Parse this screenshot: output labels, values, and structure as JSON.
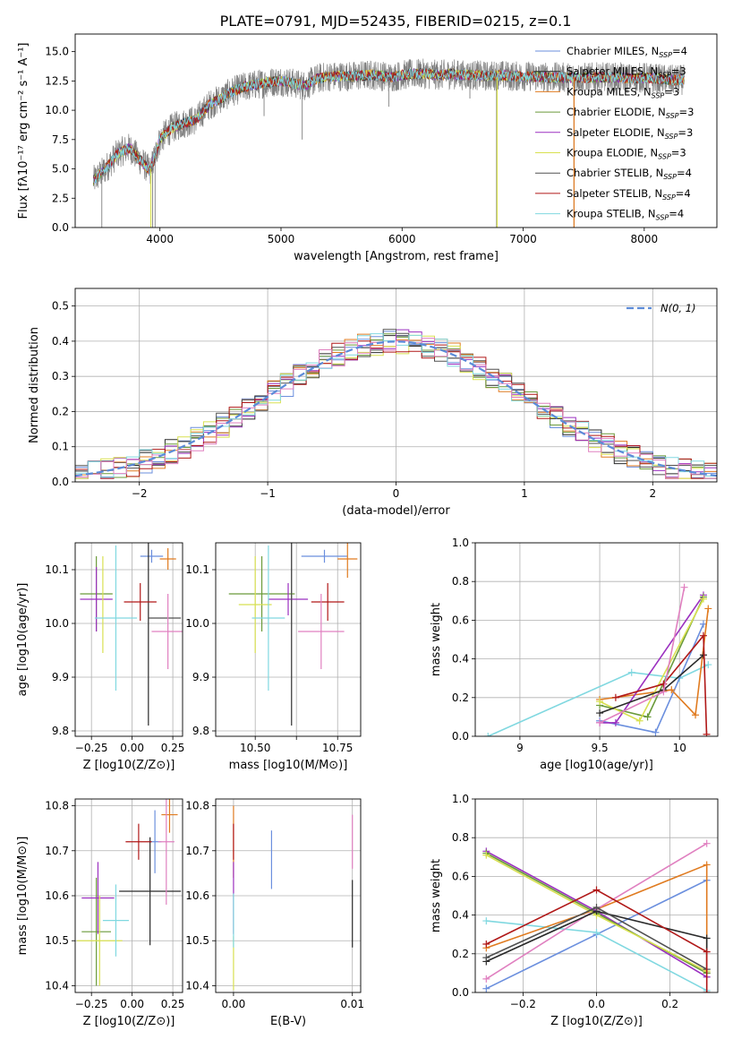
{
  "figure": {
    "title": "PLATE=0791, MJD=52435, FIBERID=0215, z=0.1"
  },
  "colors": {
    "Chabrier MILES": "#6b8fde",
    "Salpeter MILES": "#2a2a2a",
    "Kroupa MILES": "#e07b20",
    "Chabrier ELODIE": "#6a9a3a",
    "Salpeter ELODIE": "#9b30c0",
    "Kroupa ELODIE": "#d8e050",
    "Chabrier STELIB": "#505050",
    "Salpeter STELIB": "#b01818",
    "Kroupa STELIB": "#80d8e0",
    "extra": "#e080c0",
    "grid": "#b0b0b0",
    "normal_fit": "#5b8bd8"
  },
  "chart_data": [
    {
      "id": "spectrum",
      "type": "line",
      "title": "PLATE=0791, MJD=52435, FIBERID=0215, z=0.1",
      "xlabel": "wavelength [Angstrom, rest frame]",
      "ylabel": "Flux [fλ10⁻¹⁷ erg cm⁻² s⁻¹ A⁻¹]",
      "xlim": [
        3300,
        8600
      ],
      "ylim": [
        0,
        16.5
      ],
      "xticks": [
        4000,
        5000,
        6000,
        7000,
        8000
      ],
      "yticks": [
        0.0,
        2.5,
        5.0,
        7.5,
        10.0,
        12.5,
        15.0
      ],
      "grid": false,
      "legend_position": "top-right",
      "continuum": [
        [
          3450,
          4.0
        ],
        [
          3550,
          5.0
        ],
        [
          3650,
          6.3
        ],
        [
          3750,
          6.8
        ],
        [
          3850,
          5.6
        ],
        [
          3920,
          4.8
        ],
        [
          4000,
          7.5
        ],
        [
          4100,
          8.5
        ],
        [
          4200,
          8.9
        ],
        [
          4300,
          9.2
        ],
        [
          4400,
          10.4
        ],
        [
          4500,
          11.0
        ],
        [
          4600,
          11.6
        ],
        [
          4700,
          12.0
        ],
        [
          4800,
          12.2
        ],
        [
          4900,
          12.4
        ],
        [
          5000,
          12.5
        ],
        [
          5100,
          12.3
        ],
        [
          5200,
          12.1
        ],
        [
          5300,
          12.7
        ],
        [
          5400,
          12.9
        ],
        [
          5500,
          12.9
        ],
        [
          5600,
          12.9
        ],
        [
          5700,
          13.0
        ],
        [
          5800,
          13.0
        ],
        [
          5900,
          12.8
        ],
        [
          6000,
          13.0
        ],
        [
          6100,
          13.1
        ],
        [
          6200,
          13.1
        ],
        [
          6300,
          13.0
        ],
        [
          6400,
          13.1
        ],
        [
          6500,
          13.0
        ],
        [
          6600,
          13.0
        ],
        [
          6700,
          12.9
        ],
        [
          6800,
          13.0
        ],
        [
          6900,
          12.9
        ],
        [
          7000,
          12.9
        ],
        [
          7100,
          12.9
        ],
        [
          7200,
          12.8
        ],
        [
          7300,
          12.8
        ],
        [
          7400,
          12.8
        ],
        [
          7500,
          12.8
        ],
        [
          7600,
          12.8
        ],
        [
          7700,
          12.8
        ],
        [
          7800,
          12.8
        ],
        [
          7900,
          12.7
        ],
        [
          8000,
          12.8
        ],
        [
          8100,
          12.7
        ],
        [
          8200,
          12.6
        ],
        [
          8300,
          12.6
        ]
      ],
      "data_range": [
        3450,
        8330
      ],
      "dips": [
        [
          3520,
          0
        ],
        [
          3940,
          0
        ],
        [
          3960,
          0
        ],
        [
          4860,
          9.5
        ],
        [
          5175,
          7.5
        ],
        [
          5890,
          10.3
        ],
        [
          6560,
          11.0
        ],
        [
          6780,
          0
        ],
        [
          7420,
          0
        ]
      ],
      "series": [
        {
          "name": "Chabrier MILES",
          "nssp": "4"
        },
        {
          "name": "Salpeter MILES",
          "nssp": "3"
        },
        {
          "name": "Kroupa MILES",
          "nssp": "3"
        },
        {
          "name": "Chabrier ELODIE",
          "nssp": "3"
        },
        {
          "name": "Salpeter ELODIE",
          "nssp": "3"
        },
        {
          "name": "Kroupa ELODIE",
          "nssp": "3"
        },
        {
          "name": "Chabrier STELIB",
          "nssp": "4"
        },
        {
          "name": "Salpeter STELIB",
          "nssp": "4"
        },
        {
          "name": "Kroupa STELIB",
          "nssp": "4"
        }
      ]
    },
    {
      "id": "residuals",
      "type": "histogram",
      "xlabel": "(data-model)/error",
      "ylabel": "Normed distribution",
      "xlim": [
        -2.5,
        2.5
      ],
      "ylim": [
        0,
        0.55
      ],
      "xticks": [
        -2,
        -1,
        0,
        1,
        2
      ],
      "yticks": [
        0.0,
        0.1,
        0.2,
        0.3,
        0.4,
        0.5
      ],
      "grid": true,
      "legend_position": "top-right",
      "fit_label": "N(0, 1)",
      "bin_width": 0.1,
      "bin_start": -2.5,
      "bins": 50
    },
    {
      "id": "age_vs_Z",
      "type": "errorbar",
      "xlabel": "Z [log10(Z/Z⊙)]",
      "ylabel": "age [log10(age/yr)]",
      "xlim": [
        -0.35,
        0.31
      ],
      "ylim": [
        9.79,
        10.15
      ],
      "xticks": [
        -0.25,
        0.0,
        0.25
      ],
      "xticklabels": [
        "−0.25",
        "0.00",
        "0.25"
      ],
      "yticks": [
        9.8,
        9.9,
        10.0,
        10.1
      ],
      "grid": true,
      "points": [
        {
          "c": "Chabrier MILES",
          "x": 0.12,
          "y": 10.125,
          "xe": 0.07,
          "ye": 0.012
        },
        {
          "c": "Salpeter MILES",
          "x": 0.1,
          "y": 10.01,
          "xe": 0.0,
          "ye": 0.2
        },
        {
          "c": "Kroupa MILES",
          "x": 0.22,
          "y": 10.12,
          "xe": 0.05,
          "ye": 0.02
        },
        {
          "c": "Chabrier ELODIE",
          "x": -0.22,
          "y": 10.055,
          "xe": 0.1,
          "ye": 0.07
        },
        {
          "c": "Salpeter ELODIE",
          "x": -0.22,
          "y": 10.045,
          "xe": 0.1,
          "ye": 0.06
        },
        {
          "c": "Kroupa ELODIE",
          "x": -0.18,
          "y": 10.035,
          "xe": 0.0,
          "ye": 0.09
        },
        {
          "c": "Chabrier STELIB",
          "x": 0.2,
          "y": 10.01,
          "xe": 0.1,
          "ye": 0.0
        },
        {
          "c": "Salpeter STELIB",
          "x": 0.05,
          "y": 10.04,
          "xe": 0.1,
          "ye": 0.035
        },
        {
          "c": "Kroupa STELIB",
          "x": -0.1,
          "y": 10.01,
          "xe": 0.13,
          "ye": 0.135
        },
        {
          "c": "extra",
          "x": 0.22,
          "y": 9.985,
          "xe": 0.1,
          "ye": 0.07
        }
      ]
    },
    {
      "id": "age_vs_mass",
      "type": "errorbar",
      "xlabel": "mass [log10(M/M⊙)]",
      "ylabel": "",
      "xlim": [
        10.38,
        10.82
      ],
      "ylim": [
        9.79,
        10.15
      ],
      "xticks": [
        10.5,
        10.625,
        10.75
      ],
      "xticklabels": [
        "10.50",
        "",
        "10.75"
      ],
      "yticks": [
        9.8,
        9.9,
        10.0,
        10.1
      ],
      "grid": true,
      "points": [
        {
          "c": "Chabrier MILES",
          "x": 10.71,
          "y": 10.125,
          "xe": 0.07,
          "ye": 0.012
        },
        {
          "c": "Salpeter MILES",
          "x": 10.61,
          "y": 10.01,
          "xe": 0.0,
          "ye": 0.2
        },
        {
          "c": "Kroupa MILES",
          "x": 10.78,
          "y": 10.12,
          "xe": 0.03,
          "ye": 0.035
        },
        {
          "c": "Chabrier ELODIE",
          "x": 10.52,
          "y": 10.055,
          "xe": 0.1,
          "ye": 0.07
        },
        {
          "c": "Salpeter ELODIE",
          "x": 10.6,
          "y": 10.045,
          "xe": 0.06,
          "ye": 0.03
        },
        {
          "c": "Kroupa ELODIE",
          "x": 10.5,
          "y": 10.035,
          "xe": 0.05,
          "ye": 0.09
        },
        {
          "c": "Chabrier STELIB",
          "x": 10.61,
          "y": 10.01,
          "xe": 0.0,
          "ye": 0.2
        },
        {
          "c": "Salpeter STELIB",
          "x": 10.72,
          "y": 10.04,
          "xe": 0.05,
          "ye": 0.035
        },
        {
          "c": "Kroupa STELIB",
          "x": 10.54,
          "y": 10.01,
          "xe": 0.05,
          "ye": 0.135
        },
        {
          "c": "extra",
          "x": 10.7,
          "y": 9.985,
          "xe": 0.07,
          "ye": 0.07
        }
      ]
    },
    {
      "id": "weight_vs_age",
      "type": "line",
      "xlabel": "age [log10(age/yr)]",
      "ylabel": "mass weight",
      "xlim": [
        8.72,
        10.24
      ],
      "ylim": [
        0,
        1.0
      ],
      "xticks": [
        9.0,
        9.5,
        10.0
      ],
      "yticks": [
        0.0,
        0.2,
        0.4,
        0.6,
        0.8,
        1.0
      ],
      "grid": true,
      "lines": [
        {
          "c": "Kroupa STELIB",
          "pts": [
            [
              8.8,
              0.0
            ],
            [
              9.7,
              0.33
            ],
            [
              10.0,
              0.3
            ],
            [
              10.18,
              0.37
            ]
          ]
        },
        {
          "c": "Chabrier MILES",
          "pts": [
            [
              9.5,
              0.08
            ],
            [
              9.85,
              0.02
            ],
            [
              10.15,
              0.58
            ]
          ]
        },
        {
          "c": "Kroupa MILES",
          "pts": [
            [
              9.5,
              0.19
            ],
            [
              9.95,
              0.24
            ],
            [
              10.1,
              0.11
            ],
            [
              10.18,
              0.66
            ]
          ]
        },
        {
          "c": "Salpeter ELODIE",
          "pts": [
            [
              9.5,
              0.07
            ],
            [
              9.6,
              0.07
            ],
            [
              10.15,
              0.73
            ]
          ]
        },
        {
          "c": "Chabrier ELODIE",
          "pts": [
            [
              9.5,
              0.16
            ],
            [
              9.8,
              0.1
            ],
            [
              10.15,
              0.72
            ]
          ]
        },
        {
          "c": "Kroupa ELODIE",
          "pts": [
            [
              9.5,
              0.18
            ],
            [
              9.75,
              0.08
            ],
            [
              10.15,
              0.71
            ]
          ]
        },
        {
          "c": "Salpeter MILES",
          "pts": [
            [
              9.5,
              0.12
            ],
            [
              9.9,
              0.24
            ],
            [
              10.15,
              0.42
            ]
          ]
        },
        {
          "c": "Salpeter STELIB",
          "pts": [
            [
              9.6,
              0.2
            ],
            [
              9.9,
              0.27
            ],
            [
              10.15,
              0.52
            ],
            [
              10.17,
              0.01
            ]
          ]
        },
        {
          "c": "extra",
          "pts": [
            [
              9.5,
              0.07
            ],
            [
              9.9,
              0.23
            ],
            [
              10.03,
              0.77
            ]
          ]
        }
      ]
    },
    {
      "id": "mass_vs_Z",
      "type": "errorbar",
      "xlabel": "Z [log10(Z/Z⊙)]",
      "ylabel": "mass [log10(M/M⊙)]",
      "xlim": [
        -0.35,
        0.31
      ],
      "ylim": [
        10.385,
        10.815
      ],
      "xticks": [
        -0.25,
        0.0,
        0.25
      ],
      "xticklabels": [
        "−0.25",
        "0.00",
        "0.25"
      ],
      "yticks": [
        10.4,
        10.5,
        10.6,
        10.7,
        10.8
      ],
      "grid": true,
      "points": [
        {
          "c": "Chabrier MILES",
          "x": 0.14,
          "y": 10.72,
          "xe": 0.04,
          "ye": 0.07
        },
        {
          "c": "Salpeter MILES",
          "x": 0.11,
          "y": 10.61,
          "xe": 0.19,
          "ye": 0.12
        },
        {
          "c": "Kroupa MILES",
          "x": 0.23,
          "y": 10.78,
          "xe": 0.05,
          "ye": 0.04
        },
        {
          "c": "Chabrier ELODIE",
          "x": -0.22,
          "y": 10.52,
          "xe": 0.09,
          "ye": 0.12
        },
        {
          "c": "Salpeter ELODIE",
          "x": -0.21,
          "y": 10.595,
          "xe": 0.1,
          "ye": 0.08
        },
        {
          "c": "Kroupa ELODIE",
          "x": -0.2,
          "y": 10.5,
          "xe": 0.14,
          "ye": 0.1
        },
        {
          "c": "Chabrier STELIB",
          "x": 0.11,
          "y": 10.61,
          "xe": 0.0,
          "ye": 0.0
        },
        {
          "c": "Salpeter STELIB",
          "x": 0.04,
          "y": 10.72,
          "xe": 0.08,
          "ye": 0.04
        },
        {
          "c": "Kroupa STELIB",
          "x": -0.1,
          "y": 10.545,
          "xe": 0.08,
          "ye": 0.08
        },
        {
          "c": "extra",
          "x": 0.21,
          "y": 10.72,
          "xe": 0.05,
          "ye": 0.14
        }
      ]
    },
    {
      "id": "mass_vs_EBV",
      "type": "errorbar",
      "xlabel": "E(B-V)",
      "ylabel": "",
      "xlim": [
        -0.0015,
        0.0107
      ],
      "ylim": [
        10.385,
        10.815
      ],
      "xticks": [
        0.0,
        0.01
      ],
      "xticklabels": [
        "0.00",
        "0.01"
      ],
      "yticks": [
        10.4,
        10.5,
        10.6,
        10.7,
        10.8
      ],
      "grid": true,
      "points": [
        {
          "c": "Chabrier MILES",
          "x": 0.0032,
          "y": 10.68,
          "xe": 0.0,
          "ye": 0.065
        },
        {
          "c": "Salpeter MILES",
          "x": 0.01,
          "y": 10.56,
          "xe": 0.0,
          "ye": 0.075
        },
        {
          "c": "Kroupa MILES",
          "x": 0.0,
          "y": 10.72,
          "xe": 0.0,
          "ye": 0.08
        },
        {
          "c": "Salpeter ELODIE",
          "x": 0.0,
          "y": 10.595,
          "xe": 0.0,
          "ye": 0.08
        },
        {
          "c": "Salpeter STELIB",
          "x": 0.0,
          "y": 10.72,
          "xe": 0.0,
          "ye": 0.04
        },
        {
          "c": "Kroupa ELODIE",
          "x": 0.0,
          "y": 10.45,
          "xe": 0.0,
          "ye": 0.06
        },
        {
          "c": "Kroupa STELIB",
          "x": 0.0,
          "y": 10.545,
          "xe": 0.0,
          "ye": 0.06
        },
        {
          "c": "extra",
          "x": 0.01,
          "y": 10.72,
          "xe": 0.0,
          "ye": 0.06
        }
      ]
    },
    {
      "id": "weight_vs_Z",
      "type": "line",
      "xlabel": "Z [log10(Z/Z⊙)]",
      "ylabel": "mass weight",
      "xlim": [
        -0.33,
        0.33
      ],
      "ylim": [
        0,
        1.0
      ],
      "xticks": [
        -0.2,
        0.0,
        0.2
      ],
      "xticklabels": [
        "−0.2",
        "0.0",
        "0.2"
      ],
      "yticks": [
        0.0,
        0.2,
        0.4,
        0.6,
        0.8,
        1.0
      ],
      "grid": true,
      "lines": [
        {
          "c": "Chabrier MILES",
          "pts": [
            [
              -0.3,
              0.02
            ],
            [
              0.0,
              0.3
            ],
            [
              0.3,
              0.58
            ]
          ]
        },
        {
          "c": "Kroupa STELIB",
          "pts": [
            [
              -0.3,
              0.37
            ],
            [
              0.0,
              0.31
            ],
            [
              0.3,
              0.01
            ]
          ]
        },
        {
          "c": "Kroupa MILES",
          "pts": [
            [
              -0.3,
              0.23
            ],
            [
              0.0,
              0.43
            ],
            [
              0.3,
              0.66
            ],
            [
              0.3,
              0.1
            ]
          ]
        },
        {
          "c": "extra",
          "pts": [
            [
              -0.3,
              0.07
            ],
            [
              0.0,
              0.43
            ],
            [
              0.3,
              0.77
            ]
          ]
        },
        {
          "c": "Salpeter ELODIE",
          "pts": [
            [
              -0.3,
              0.73
            ],
            [
              0.0,
              0.42
            ],
            [
              0.3,
              0.08
            ]
          ]
        },
        {
          "c": "Chabrier ELODIE",
          "pts": [
            [
              -0.3,
              0.72
            ],
            [
              0.0,
              0.41
            ],
            [
              0.3,
              0.1
            ]
          ]
        },
        {
          "c": "Kroupa ELODIE",
          "pts": [
            [
              -0.3,
              0.71
            ],
            [
              0.0,
              0.4
            ],
            [
              0.3,
              0.11
            ]
          ]
        },
        {
          "c": "Salpeter MILES",
          "pts": [
            [
              -0.3,
              0.16
            ],
            [
              0.0,
              0.42
            ],
            [
              0.3,
              0.28
            ],
            [
              0.3,
              0.12
            ]
          ]
        },
        {
          "c": "Chabrier STELIB",
          "pts": [
            [
              -0.3,
              0.18
            ],
            [
              0.0,
              0.44
            ],
            [
              0.3,
              0.12
            ]
          ]
        },
        {
          "c": "Salpeter STELIB",
          "pts": [
            [
              -0.3,
              0.25
            ],
            [
              0.0,
              0.53
            ],
            [
              0.3,
              0.21
            ],
            [
              0.3,
              0.0
            ]
          ]
        }
      ]
    }
  ]
}
